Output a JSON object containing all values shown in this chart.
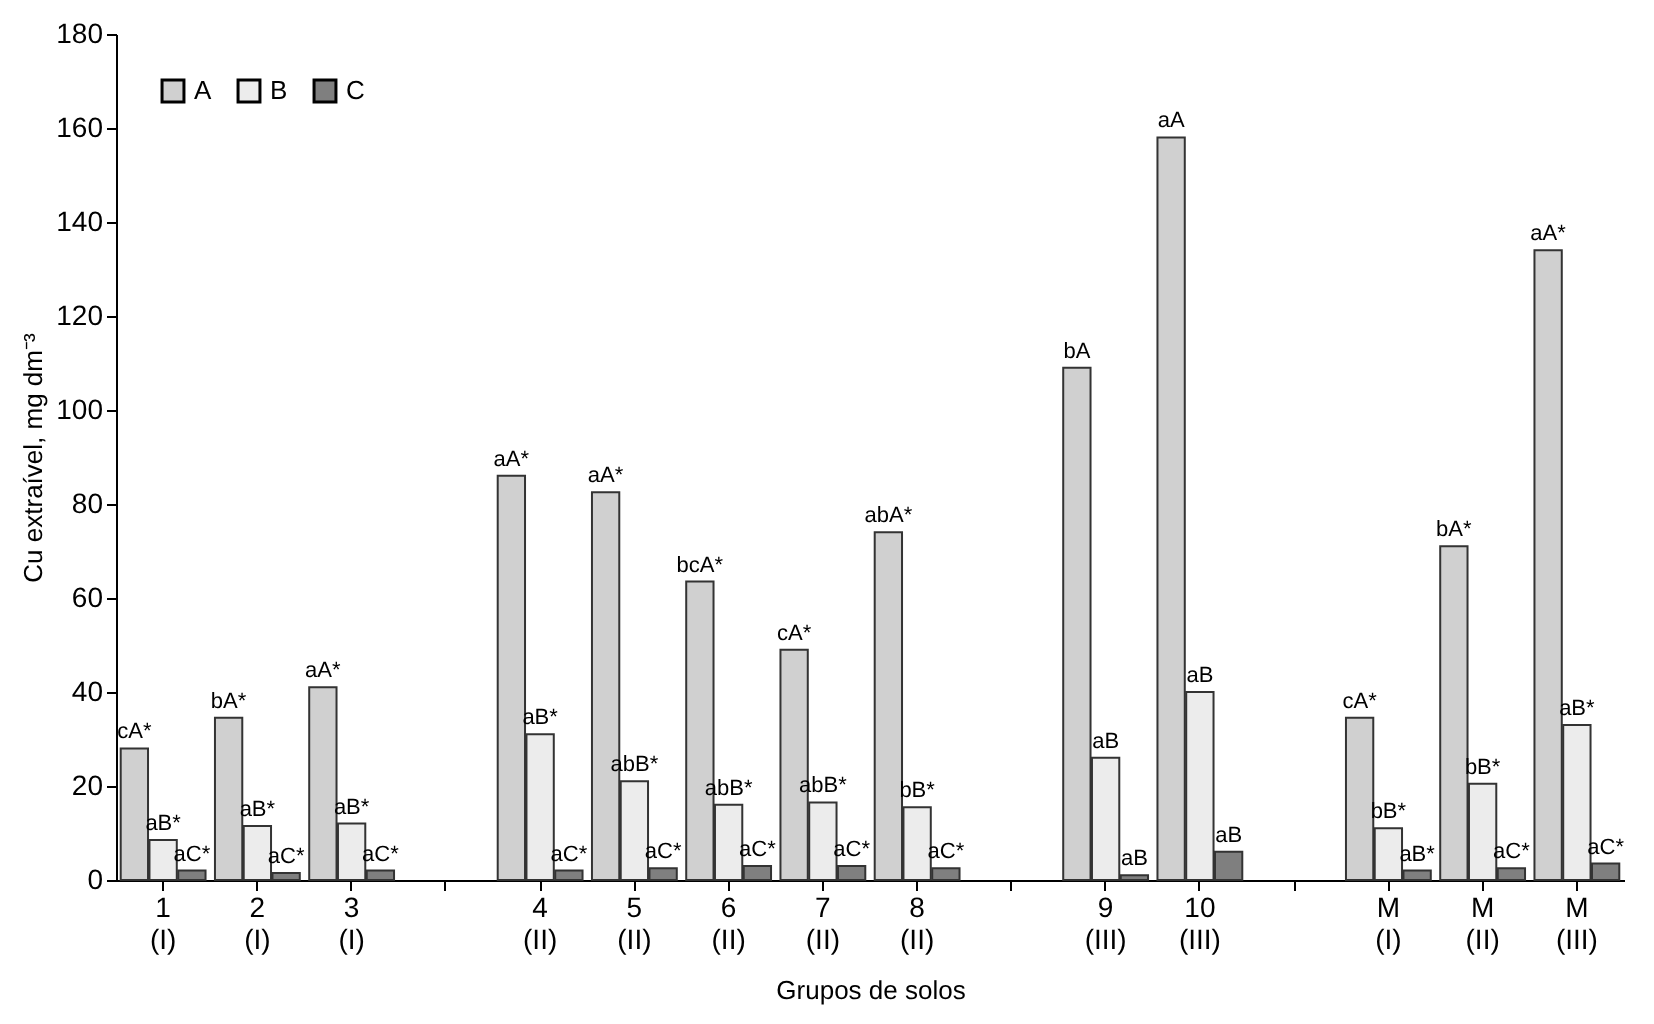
{
  "chart_data": {
    "type": "bar",
    "xlabel": "Grupos de solos",
    "ylabel": "Cu extraível,  mg dm⁻³",
    "categories": [
      "1\n(I)",
      "2\n(I)",
      "3\n(I)",
      null,
      "4\n(II)",
      "5\n(II)",
      "6\n(II)",
      "7\n(II)",
      "8\n(II)",
      null,
      "9\n(III)",
      "10\n(III)",
      null,
      "M\n(I)",
      "M\n(II)",
      "M\n(III)"
    ],
    "series": [
      {
        "name": "A",
        "color": "#d0d0d0",
        "values": [
          28,
          34.5,
          41,
          null,
          86,
          82.5,
          63.5,
          49,
          74,
          null,
          109,
          158,
          null,
          34.5,
          71,
          134
        ],
        "value_labels": [
          "cA*",
          "bA*",
          "aA*",
          null,
          "aA*",
          "aA*",
          "bcA*",
          "cA*",
          "abA*",
          null,
          "bA",
          "aA",
          null,
          "cA*",
          "bA*",
          "aA*"
        ]
      },
      {
        "name": "B",
        "color": "#ececec",
        "values": [
          8.5,
          11.5,
          12,
          null,
          31,
          21,
          16,
          16.5,
          15.5,
          null,
          26,
          40,
          null,
          11,
          20.5,
          33
        ],
        "value_labels": [
          "aB*",
          "aB*",
          "aB*",
          null,
          "aB*",
          "abB*",
          "abB*",
          "abB*",
          "bB*",
          null,
          "aB",
          "aB",
          null,
          "bB*",
          "bB*",
          "aB*"
        ]
      },
      {
        "name": "C",
        "color": "#7f7f7f",
        "values": [
          2,
          1.5,
          2,
          null,
          2,
          2.5,
          3,
          3,
          2.5,
          null,
          1,
          6,
          null,
          2,
          2.5,
          3.5
        ],
        "value_labels": [
          "aC*",
          "aC*",
          "aC*",
          null,
          "aC*",
          "aC*",
          "aC*",
          "aC*",
          "aC*",
          null,
          "aB",
          "aB",
          null,
          "aB*",
          "aC*",
          "aC*"
        ]
      }
    ],
    "ylim": [
      0,
      180
    ],
    "yticks": [
      0,
      20,
      40,
      60,
      80,
      100,
      120,
      140,
      160,
      180
    ],
    "grid": false,
    "legend": "top left"
  }
}
